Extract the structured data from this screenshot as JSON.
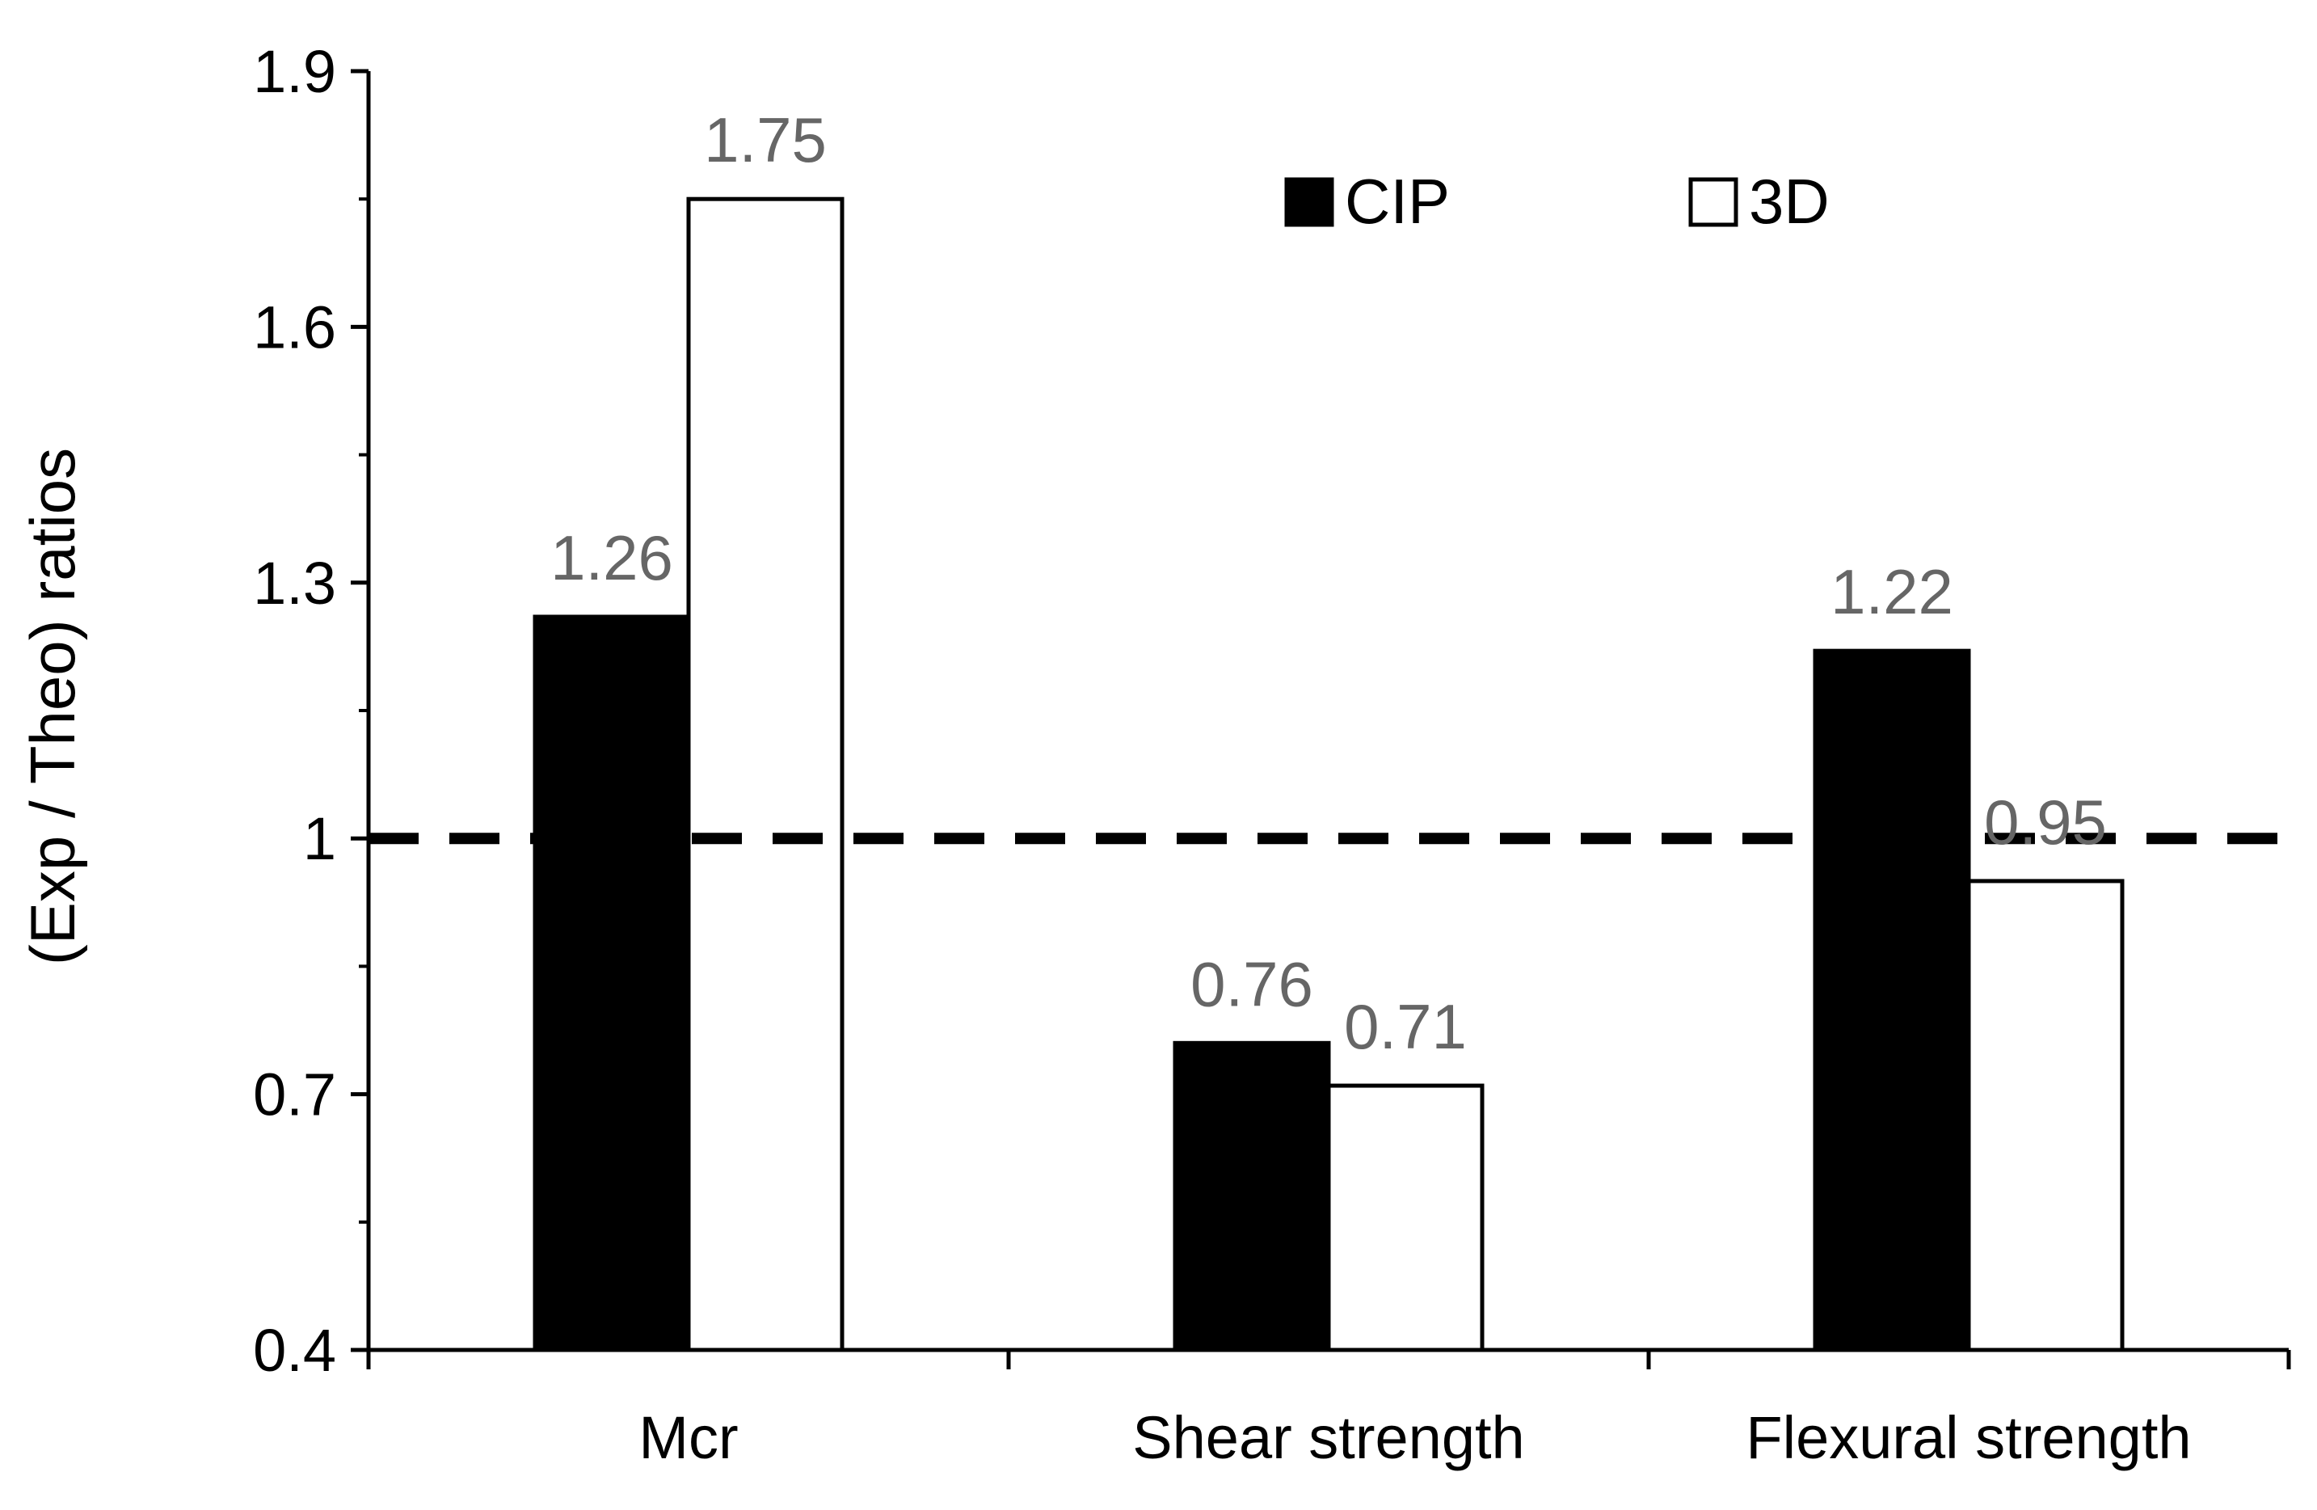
{
  "chart_data": {
    "type": "bar",
    "title": "",
    "xlabel": "",
    "ylabel": "(Exp / Theo) ratios",
    "categories": [
      "Mcr",
      "Shear strength",
      "Flexural strength"
    ],
    "series": [
      {
        "name": "CIP",
        "values": [
          1.26,
          0.76,
          1.22
        ],
        "labels": [
          "1.26",
          "0.76",
          "1.22"
        ],
        "fill": "#000000",
        "stroke": "#000000"
      },
      {
        "name": "3D",
        "values": [
          1.75,
          0.71,
          0.95
        ],
        "labels": [
          "1.75",
          "0.71",
          "0.95"
        ],
        "fill": "#ffffff",
        "stroke": "#000000"
      }
    ],
    "ylim": [
      0.4,
      1.9
    ],
    "yticks": [
      0.4,
      0.7,
      1,
      1.3,
      1.6,
      1.9
    ],
    "ytick_labels": [
      "0.4",
      "0.7",
      "1",
      "1.3",
      "1.6",
      "1.9"
    ],
    "minor_tick_step": 0.15,
    "reference_line": {
      "y": 1,
      "style": "dashed"
    },
    "legend_position": "top-right",
    "data_label_color": "#666666",
    "grid": false
  }
}
